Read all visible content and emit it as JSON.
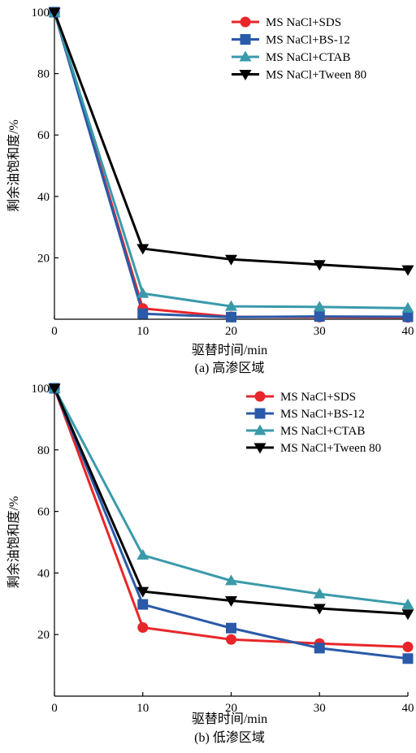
{
  "chart_data": [
    {
      "type": "line",
      "caption": "(a) 高渗区域",
      "xlabel": "驱替时间/min",
      "ylabel": "剩余油饱和度/%",
      "x": [
        0,
        10,
        20,
        30,
        40
      ],
      "xlim": [
        0,
        40
      ],
      "ylim": [
        0,
        100
      ],
      "xticks": [
        "0",
        "10",
        "20",
        "30",
        "40"
      ],
      "yticks": [
        "20",
        "40",
        "60",
        "80",
        "100"
      ],
      "grid": false,
      "legend_position": "top-right",
      "series": [
        {
          "name": "MS NaCl+SDS",
          "color": "#e8262a",
          "marker": "circle",
          "values": [
            100,
            3.5,
            0.8,
            0.7,
            0.6
          ]
        },
        {
          "name": "MS NaCl+BS-12",
          "color": "#2a5aa8",
          "marker": "square",
          "values": [
            100,
            1.8,
            0.7,
            0.9,
            0.8
          ]
        },
        {
          "name": "MS NaCl+CTAB",
          "color": "#3a9aaa",
          "marker": "triangle-up",
          "values": [
            100,
            8.4,
            4.2,
            4.0,
            3.6
          ]
        },
        {
          "name": "MS NaCl+Tween 80",
          "color": "#000000",
          "marker": "triangle-down",
          "values": [
            100,
            23.0,
            19.5,
            17.8,
            16.1
          ]
        }
      ]
    },
    {
      "type": "line",
      "caption": "(b) 低渗区域",
      "xlabel": "驱替时间/min",
      "ylabel": "剩余油饱和度/%",
      "x": [
        0,
        10,
        20,
        30,
        40
      ],
      "xlim": [
        0,
        40
      ],
      "ylim": [
        0,
        100
      ],
      "xticks": [
        "0",
        "10",
        "20",
        "30",
        "40"
      ],
      "yticks": [
        "20",
        "40",
        "60",
        "80",
        "100"
      ],
      "grid": false,
      "legend_position": "top-right",
      "series": [
        {
          "name": "MS NaCl+SDS",
          "color": "#e8262a",
          "marker": "circle",
          "values": [
            100,
            22.3,
            18.4,
            17.1,
            16.0
          ]
        },
        {
          "name": "MS NaCl+BS-12",
          "color": "#2a5aa8",
          "marker": "square",
          "values": [
            100,
            29.8,
            22.1,
            15.6,
            12.2
          ]
        },
        {
          "name": "MS NaCl+CTAB",
          "color": "#3a9aaa",
          "marker": "triangle-up",
          "values": [
            100,
            45.8,
            37.5,
            33.2,
            29.7
          ]
        },
        {
          "name": "MS NaCl+Tween 80",
          "color": "#000000",
          "marker": "triangle-down",
          "values": [
            100,
            34.0,
            31.0,
            28.5,
            26.7
          ]
        }
      ]
    }
  ]
}
